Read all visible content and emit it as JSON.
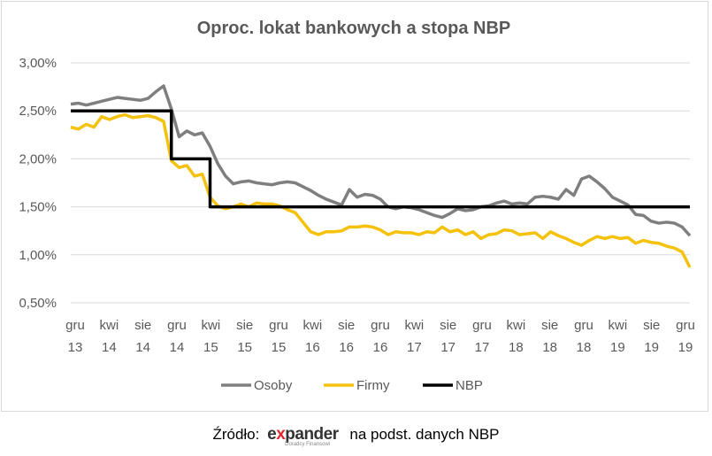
{
  "chart_data": {
    "type": "line",
    "title": "Oproc. lokat bankowych a stopa NBP",
    "xlabel": "",
    "ylabel": "",
    "ylim": [
      0.005,
      0.03
    ],
    "y_ticks": [
      "0,50%",
      "1,00%",
      "1,50%",
      "2,00%",
      "2,50%",
      "3,00%"
    ],
    "x_ticks": [
      {
        "top": "gru",
        "bottom": "13"
      },
      {
        "top": "kwi",
        "bottom": "14"
      },
      {
        "top": "sie",
        "bottom": "14"
      },
      {
        "top": "gru",
        "bottom": "14"
      },
      {
        "top": "kwi",
        "bottom": "15"
      },
      {
        "top": "sie",
        "bottom": "15"
      },
      {
        "top": "gru",
        "bottom": "15"
      },
      {
        "top": "kwi",
        "bottom": "16"
      },
      {
        "top": "sie",
        "bottom": "16"
      },
      {
        "top": "gru",
        "bottom": "16"
      },
      {
        "top": "kwi",
        "bottom": "17"
      },
      {
        "top": "sie",
        "bottom": "17"
      },
      {
        "top": "gru",
        "bottom": "17"
      },
      {
        "top": "kwi",
        "bottom": "18"
      },
      {
        "top": "sie",
        "bottom": "18"
      },
      {
        "top": "gru",
        "bottom": "18"
      },
      {
        "top": "kwi",
        "bottom": "19"
      },
      {
        "top": "sie",
        "bottom": "19"
      },
      {
        "top": "gru",
        "bottom": "19"
      }
    ],
    "legend_position": "bottom",
    "grid": true,
    "series": [
      {
        "name": "Osoby",
        "color": "#7f7f7f",
        "values": [
          2.57,
          2.58,
          2.56,
          2.58,
          2.6,
          2.62,
          2.64,
          2.63,
          2.62,
          2.61,
          2.63,
          2.7,
          2.76,
          2.52,
          2.23,
          2.29,
          2.25,
          2.27,
          2.13,
          1.95,
          1.82,
          1.74,
          1.76,
          1.77,
          1.75,
          1.74,
          1.73,
          1.75,
          1.76,
          1.75,
          1.71,
          1.67,
          1.62,
          1.58,
          1.55,
          1.52,
          1.68,
          1.6,
          1.63,
          1.62,
          1.58,
          1.5,
          1.48,
          1.5,
          1.49,
          1.47,
          1.44,
          1.41,
          1.39,
          1.43,
          1.48,
          1.46,
          1.47,
          1.5,
          1.51,
          1.54,
          1.56,
          1.53,
          1.54,
          1.53,
          1.6,
          1.61,
          1.6,
          1.58,
          1.68,
          1.62,
          1.79,
          1.82,
          1.76,
          1.69,
          1.6,
          1.56,
          1.52,
          1.42,
          1.41,
          1.35,
          1.33,
          1.34,
          1.33,
          1.29,
          1.2
        ]
      },
      {
        "name": "Firmy",
        "color": "#f4c20d",
        "values": [
          2.33,
          2.31,
          2.36,
          2.33,
          2.44,
          2.41,
          2.44,
          2.46,
          2.43,
          2.44,
          2.45,
          2.43,
          2.39,
          1.98,
          1.91,
          1.93,
          1.82,
          1.84,
          1.6,
          1.51,
          1.48,
          1.5,
          1.53,
          1.5,
          1.54,
          1.53,
          1.53,
          1.51,
          1.47,
          1.44,
          1.34,
          1.24,
          1.21,
          1.24,
          1.24,
          1.25,
          1.29,
          1.29,
          1.3,
          1.29,
          1.26,
          1.21,
          1.24,
          1.23,
          1.23,
          1.21,
          1.24,
          1.23,
          1.29,
          1.24,
          1.26,
          1.21,
          1.24,
          1.17,
          1.21,
          1.22,
          1.26,
          1.25,
          1.21,
          1.22,
          1.23,
          1.17,
          1.24,
          1.2,
          1.17,
          1.13,
          1.1,
          1.15,
          1.19,
          1.17,
          1.19,
          1.17,
          1.18,
          1.12,
          1.15,
          1.13,
          1.12,
          1.09,
          1.07,
          1.03,
          0.87
        ]
      },
      {
        "name": "NBP",
        "color": "#000000",
        "values": [
          2.5,
          2.5,
          2.5,
          2.5,
          2.5,
          2.5,
          2.5,
          2.5,
          2.5,
          2.5,
          2.5,
          2.5,
          2.5,
          2.0,
          2.0,
          2.0,
          2.0,
          2.0,
          1.5,
          1.5,
          1.5,
          1.5,
          1.5,
          1.5,
          1.5,
          1.5,
          1.5,
          1.5,
          1.5,
          1.5,
          1.5,
          1.5,
          1.5,
          1.5,
          1.5,
          1.5,
          1.5,
          1.5,
          1.5,
          1.5,
          1.5,
          1.5,
          1.5,
          1.5,
          1.5,
          1.5,
          1.5,
          1.5,
          1.5,
          1.5,
          1.5,
          1.5,
          1.5,
          1.5,
          1.5,
          1.5,
          1.5,
          1.5,
          1.5,
          1.5,
          1.5,
          1.5,
          1.5,
          1.5,
          1.5,
          1.5,
          1.5,
          1.5,
          1.5,
          1.5,
          1.5,
          1.5,
          1.5,
          1.5,
          1.5,
          1.5,
          1.5,
          1.5,
          1.5,
          1.5,
          1.5
        ],
        "step": true
      }
    ]
  },
  "source": {
    "prefix": "Źródło:",
    "logo_text_a": "e",
    "logo_text_x": "x",
    "logo_text_b": "pander",
    "logo_sub": "Doradcy Finansowi",
    "suffix": "na podst. danych NBP"
  }
}
